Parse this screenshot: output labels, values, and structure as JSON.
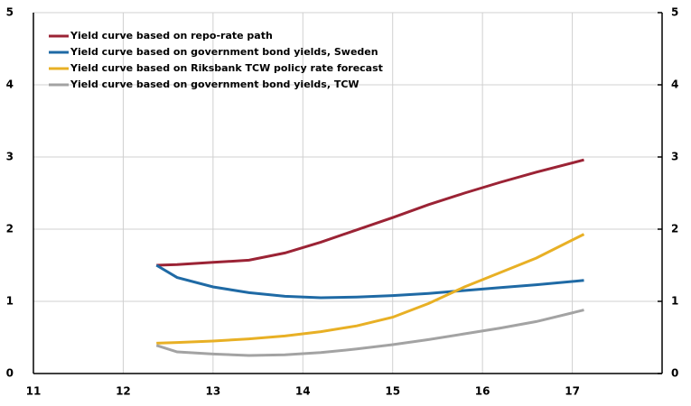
{
  "chart_data": {
    "type": "line",
    "x": [
      12.37,
      12.6,
      13,
      13.4,
      13.8,
      14.2,
      14.6,
      15,
      15.4,
      15.8,
      16.2,
      16.6,
      17.13
    ],
    "series": [
      {
        "name": "Yield curve based on repo-rate path",
        "color": "#9b2335",
        "values": [
          1.5,
          1.51,
          1.54,
          1.57,
          1.67,
          1.82,
          1.99,
          2.16,
          2.34,
          2.5,
          2.65,
          2.79,
          2.96
        ]
      },
      {
        "name": "Yield curve based on government bond yields, Sweden",
        "color": "#1f6aa5",
        "values": [
          1.5,
          1.33,
          1.2,
          1.12,
          1.07,
          1.05,
          1.06,
          1.08,
          1.11,
          1.15,
          1.19,
          1.23,
          1.29
        ]
      },
      {
        "name": "Yield curve based on Riksbank TCW policy rate forecast",
        "color": "#e8b025",
        "values": [
          0.42,
          0.43,
          0.45,
          0.48,
          0.52,
          0.58,
          0.66,
          0.78,
          0.97,
          1.2,
          1.4,
          1.6,
          1.93
        ]
      },
      {
        "name": "Yield curve based on government bond yields, TCW",
        "color": "#a3a3a3",
        "values": [
          0.39,
          0.3,
          0.27,
          0.25,
          0.26,
          0.29,
          0.34,
          0.4,
          0.47,
          0.55,
          0.63,
          0.72,
          0.88
        ]
      }
    ],
    "xlim": [
      11,
      18
    ],
    "xticks": [
      11,
      12,
      13,
      14,
      15,
      16,
      17
    ],
    "ylim": [
      0,
      5
    ],
    "yticks": [
      0,
      1,
      2,
      3,
      4,
      5
    ],
    "y2lim": [
      0,
      5
    ],
    "y2ticks": [
      0,
      1,
      2,
      3,
      4,
      5
    ],
    "grid": true,
    "legend": "upper left"
  }
}
